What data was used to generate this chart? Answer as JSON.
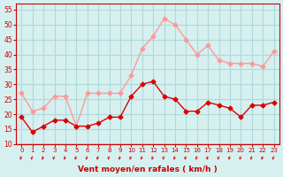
{
  "hours": [
    0,
    1,
    2,
    3,
    4,
    5,
    6,
    7,
    8,
    9,
    10,
    11,
    12,
    13,
    14,
    15,
    16,
    17,
    18,
    19,
    20,
    21,
    22,
    23
  ],
  "vent_moyen": [
    19,
    14,
    16,
    18,
    18,
    16,
    16,
    17,
    19,
    19,
    26,
    30,
    31,
    26,
    25,
    21,
    21,
    24,
    23,
    22,
    19,
    23,
    23,
    24
  ],
  "rafales": [
    27,
    21,
    22,
    26,
    26,
    16,
    27,
    27,
    27,
    27,
    33,
    42,
    46,
    52,
    50,
    45,
    40,
    43,
    38,
    37,
    37,
    37,
    36,
    41
  ],
  "bg_color": "#d6f0f0",
  "grid_color": "#b0d8d8",
  "moyen_color": "#dd0000",
  "rafales_color": "#ff9999",
  "xlabel": "Vent moyen/en rafales ( km/h )",
  "xlabel_color": "#cc0000",
  "tick_color": "#cc0000",
  "arrow_color": "#cc0000",
  "ylim": [
    10,
    57
  ],
  "yticks": [
    10,
    15,
    20,
    25,
    30,
    35,
    40,
    45,
    50,
    55
  ],
  "xticks": [
    0,
    1,
    2,
    3,
    4,
    5,
    6,
    7,
    8,
    9,
    10,
    11,
    12,
    13,
    14,
    15,
    16,
    17,
    18,
    19,
    20,
    21,
    22,
    23
  ]
}
